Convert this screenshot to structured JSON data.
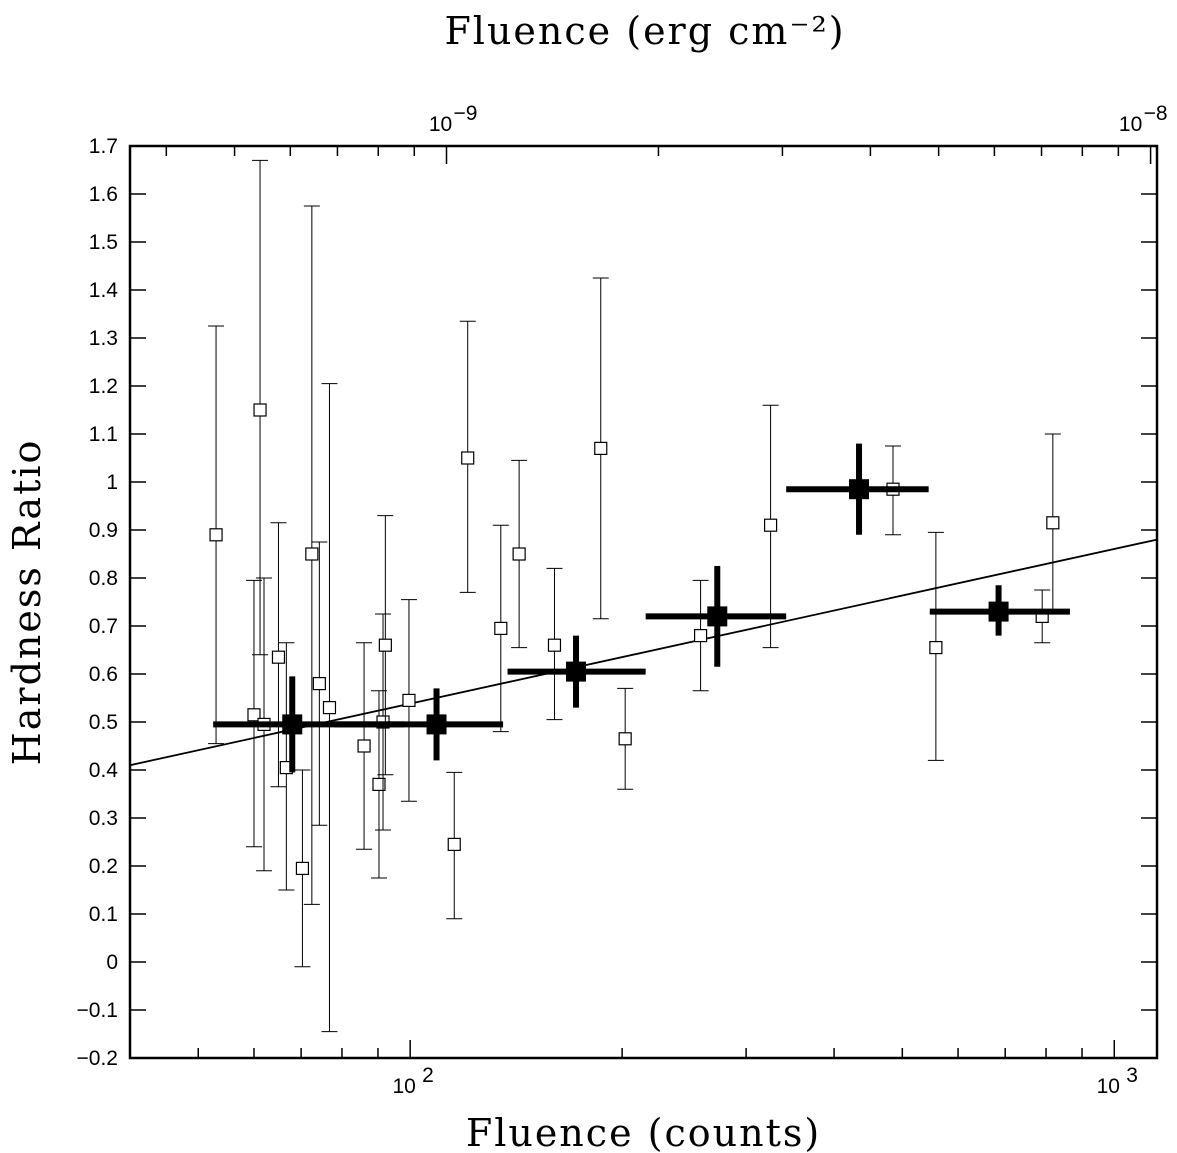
{
  "chart_data": {
    "type": "scatter",
    "title": "",
    "xlabel": "Fluence (counts)",
    "x2label": "Fluence (erg cm⁻²)",
    "ylabel": "Hardness Ratio",
    "x_scale": "log",
    "xlim": [
      40.0,
      1150.0
    ],
    "ylim": [
      -0.2,
      1.7
    ],
    "x2_scale": "log",
    "x2_ticks": [
      {
        "value": 1e-09,
        "label_base": "10",
        "label_exp": "−9"
      },
      {
        "value": 1e-08,
        "label_base": "10",
        "label_exp": "−8"
      }
    ],
    "x2_per_x1": 8.88e-12,
    "x_major_ticks": [
      {
        "value": 100,
        "label_base": "10",
        "label_exp": "2"
      },
      {
        "value": 1000,
        "label_base": "10",
        "label_exp": "3"
      }
    ],
    "y_ticks": [
      -0.2,
      -0.1,
      0,
      0.1,
      0.2,
      0.3,
      0.4,
      0.5,
      0.6,
      0.7,
      0.8,
      0.9,
      1,
      1.1,
      1.2,
      1.3,
      1.4,
      1.5,
      1.6,
      1.7
    ],
    "y_tick_labels": [
      "−0.2",
      "−0.1",
      "0",
      "0.1",
      "0.2",
      "0.3",
      "0.4",
      "0.5",
      "0.6",
      "0.7",
      "0.8",
      "0.9",
      "1",
      "1.1",
      "1.2",
      "1.3",
      "1.4",
      "1.5",
      "1.6",
      "1.7"
    ],
    "grid": false,
    "series": [
      {
        "marker": "open-square",
        "points": [
          {
            "x": 53.0,
            "y": 0.89,
            "ylo": 0.455,
            "yhi": 1.325
          },
          {
            "x": 60.0,
            "y": 0.515,
            "ylo": 0.24,
            "yhi": 0.795
          },
          {
            "x": 61.2,
            "y": 1.15,
            "ylo": 0.64,
            "yhi": 1.67
          },
          {
            "x": 62.0,
            "y": 0.495,
            "ylo": 0.19,
            "yhi": 0.8
          },
          {
            "x": 65.0,
            "y": 0.635,
            "ylo": 0.365,
            "yhi": 0.915
          },
          {
            "x": 66.7,
            "y": 0.405,
            "ylo": 0.15,
            "yhi": 0.665
          },
          {
            "x": 70.3,
            "y": 0.195,
            "ylo": -0.01,
            "yhi": 0.4
          },
          {
            "x": 72.5,
            "y": 0.85,
            "ylo": 0.12,
            "yhi": 1.575
          },
          {
            "x": 74.3,
            "y": 0.58,
            "ylo": 0.285,
            "yhi": 0.875
          },
          {
            "x": 76.8,
            "y": 0.53,
            "ylo": -0.145,
            "yhi": 1.205
          },
          {
            "x": 86.0,
            "y": 0.45,
            "ylo": 0.235,
            "yhi": 0.665
          },
          {
            "x": 90.3,
            "y": 0.37,
            "ylo": 0.175,
            "yhi": 0.565
          },
          {
            "x": 91.5,
            "y": 0.5,
            "ylo": 0.275,
            "yhi": 0.725
          },
          {
            "x": 92.2,
            "y": 0.66,
            "ylo": 0.39,
            "yhi": 0.93
          },
          {
            "x": 99.6,
            "y": 0.545,
            "ylo": 0.335,
            "yhi": 0.755
          },
          {
            "x": 115.5,
            "y": 0.245,
            "ylo": 0.09,
            "yhi": 0.395
          },
          {
            "x": 120.7,
            "y": 1.05,
            "ylo": 0.77,
            "yhi": 1.335
          },
          {
            "x": 134.5,
            "y": 0.695,
            "ylo": 0.48,
            "yhi": 0.91
          },
          {
            "x": 142.8,
            "y": 0.85,
            "ylo": 0.655,
            "yhi": 1.045
          },
          {
            "x": 160.3,
            "y": 0.66,
            "ylo": 0.505,
            "yhi": 0.82
          },
          {
            "x": 186.5,
            "y": 1.07,
            "ylo": 0.715,
            "yhi": 1.425
          },
          {
            "x": 202.0,
            "y": 0.465,
            "ylo": 0.36,
            "yhi": 0.57
          },
          {
            "x": 258.5,
            "y": 0.68,
            "ylo": 0.565,
            "yhi": 0.795
          },
          {
            "x": 325.0,
            "y": 0.91,
            "ylo": 0.655,
            "yhi": 1.16
          },
          {
            "x": 485.0,
            "y": 0.985,
            "ylo": 0.89,
            "yhi": 1.075
          },
          {
            "x": 558.0,
            "y": 0.655,
            "ylo": 0.42,
            "yhi": 0.895
          },
          {
            "x": 790.0,
            "y": 0.72,
            "ylo": 0.665,
            "yhi": 0.775
          },
          {
            "x": 818.0,
            "y": 0.915,
            "ylo": 0.73,
            "yhi": 1.1
          }
        ]
      },
      {
        "marker": "filled-square",
        "points": [
          {
            "x": 68.0,
            "y": 0.495,
            "xlo": 52.5,
            "xhi": 98.0,
            "ylo": 0.395,
            "yhi": 0.595
          },
          {
            "x": 109.0,
            "y": 0.495,
            "xlo": 78.0,
            "xhi": 135.5,
            "ylo": 0.42,
            "yhi": 0.57
          },
          {
            "x": 172.0,
            "y": 0.605,
            "xlo": 137.5,
            "xhi": 216.0,
            "ylo": 0.53,
            "yhi": 0.68
          },
          {
            "x": 273.0,
            "y": 0.72,
            "xlo": 216.0,
            "xhi": 342.0,
            "ylo": 0.615,
            "yhi": 0.825
          },
          {
            "x": 434.0,
            "y": 0.985,
            "xlo": 342.0,
            "xhi": 545.0,
            "ylo": 0.89,
            "yhi": 1.08
          },
          {
            "x": 685.0,
            "y": 0.73,
            "xlo": 547.0,
            "xhi": 865.0,
            "ylo": 0.68,
            "yhi": 0.785
          }
        ]
      },
      {
        "type": "line",
        "points": [
          {
            "x": 40.0,
            "y": 0.41
          },
          {
            "x": 1150.0,
            "y": 0.88
          }
        ]
      }
    ]
  }
}
